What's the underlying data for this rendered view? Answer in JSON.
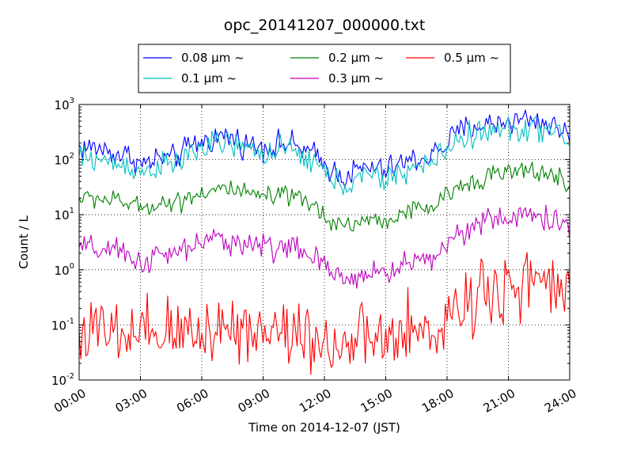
{
  "chart_data": {
    "type": "line",
    "title": "opc_20141207_000000.txt",
    "xlabel": "Time on 2014-12-07 (JST)",
    "ylabel": "Count / L",
    "x_unit": "hour",
    "xlim": [
      0,
      24
    ],
    "ylim": [
      0.01,
      1000
    ],
    "yscale": "log",
    "grid": true,
    "legend_position": "top-center",
    "x_ticks": [
      {
        "value": 0,
        "label": "00:00"
      },
      {
        "value": 3,
        "label": "03:00"
      },
      {
        "value": 6,
        "label": "06:00"
      },
      {
        "value": 9,
        "label": "09:00"
      },
      {
        "value": 12,
        "label": "12:00"
      },
      {
        "value": 15,
        "label": "15:00"
      },
      {
        "value": 18,
        "label": "18:00"
      },
      {
        "value": 21,
        "label": "21:00"
      },
      {
        "value": 24,
        "label": "24:00"
      }
    ],
    "y_ticks": [
      {
        "value": 0.01,
        "base": "10",
        "exp": "-2"
      },
      {
        "value": 0.1,
        "base": "10",
        "exp": "-1"
      },
      {
        "value": 1,
        "base": "10",
        "exp": "0"
      },
      {
        "value": 10,
        "base": "10",
        "exp": "1"
      },
      {
        "value": 100,
        "base": "10",
        "exp": "2"
      },
      {
        "value": 1000,
        "base": "10",
        "exp": "3"
      }
    ],
    "series": [
      {
        "name": "0.08 μm ~",
        "color": "#0000ff",
        "noise": 0.12,
        "points": [
          [
            0,
            170
          ],
          [
            1,
            160
          ],
          [
            2,
            120
          ],
          [
            2.5,
            120
          ],
          [
            3,
            80
          ],
          [
            3.5,
            90
          ],
          [
            4,
            110
          ],
          [
            4.5,
            100
          ],
          [
            5,
            130
          ],
          [
            5.5,
            180
          ],
          [
            6,
            210
          ],
          [
            6.5,
            230
          ],
          [
            7,
            270
          ],
          [
            7.5,
            250
          ],
          [
            8,
            200
          ],
          [
            8.5,
            180
          ],
          [
            9,
            180
          ],
          [
            9.5,
            170
          ],
          [
            10,
            200
          ],
          [
            10.5,
            180
          ],
          [
            11,
            150
          ],
          [
            11.5,
            120
          ],
          [
            12,
            80
          ],
          [
            12.5,
            60
          ],
          [
            13,
            50
          ],
          [
            13.5,
            60
          ],
          [
            14,
            70
          ],
          [
            14.5,
            70
          ],
          [
            15,
            60
          ],
          [
            15.5,
            80
          ],
          [
            16,
            90
          ],
          [
            16.5,
            100
          ],
          [
            17,
            110
          ],
          [
            17.5,
            140
          ],
          [
            18,
            200
          ],
          [
            18.5,
            300
          ],
          [
            19,
            380
          ],
          [
            19.5,
            420
          ],
          [
            20,
            430
          ],
          [
            20.5,
            470
          ],
          [
            21,
            500
          ],
          [
            21.5,
            520
          ],
          [
            22,
            560
          ],
          [
            22.5,
            500
          ],
          [
            23,
            420
          ],
          [
            23.5,
            360
          ],
          [
            24,
            300
          ]
        ]
      },
      {
        "name": "0.1 μm ~",
        "color": "#00bfbf",
        "noise": 0.12,
        "points": [
          [
            0,
            110
          ],
          [
            1,
            100
          ],
          [
            2,
            80
          ],
          [
            2.5,
            80
          ],
          [
            3,
            55
          ],
          [
            3.5,
            70
          ],
          [
            4,
            80
          ],
          [
            4.5,
            75
          ],
          [
            5,
            95
          ],
          [
            5.5,
            140
          ],
          [
            6,
            160
          ],
          [
            6.5,
            180
          ],
          [
            7,
            200
          ],
          [
            7.5,
            190
          ],
          [
            8,
            160
          ],
          [
            8.5,
            140
          ],
          [
            9,
            140
          ],
          [
            9.5,
            130
          ],
          [
            10,
            150
          ],
          [
            10.5,
            140
          ],
          [
            11,
            110
          ],
          [
            11.5,
            90
          ],
          [
            12,
            60
          ],
          [
            12.5,
            40
          ],
          [
            13,
            35
          ],
          [
            13.5,
            40
          ],
          [
            14,
            50
          ],
          [
            14.5,
            50
          ],
          [
            15,
            40
          ],
          [
            15.5,
            55
          ],
          [
            16,
            65
          ],
          [
            16.5,
            70
          ],
          [
            17,
            80
          ],
          [
            17.5,
            100
          ],
          [
            18,
            160
          ],
          [
            18.5,
            220
          ],
          [
            19,
            270
          ],
          [
            19.5,
            300
          ],
          [
            20,
            310
          ],
          [
            20.5,
            330
          ],
          [
            21,
            350
          ],
          [
            21.5,
            360
          ],
          [
            22,
            380
          ],
          [
            22.5,
            370
          ],
          [
            23,
            330
          ],
          [
            23.5,
            280
          ],
          [
            24,
            200
          ]
        ]
      },
      {
        "name": "0.2 μm ~",
        "color": "#008000",
        "noise": 0.09,
        "points": [
          [
            0,
            20
          ],
          [
            1,
            20
          ],
          [
            2,
            17
          ],
          [
            2.5,
            16
          ],
          [
            3,
            13
          ],
          [
            3.5,
            15
          ],
          [
            4,
            17
          ],
          [
            4.5,
            16
          ],
          [
            5,
            18
          ],
          [
            5.5,
            23
          ],
          [
            6,
            25
          ],
          [
            6.5,
            28
          ],
          [
            7,
            30
          ],
          [
            7.5,
            28
          ],
          [
            8,
            24
          ],
          [
            8.5,
            22
          ],
          [
            9,
            22
          ],
          [
            9.5,
            20
          ],
          [
            10,
            22
          ],
          [
            10.5,
            20
          ],
          [
            11,
            17
          ],
          [
            11.5,
            14
          ],
          [
            12,
            10
          ],
          [
            12.5,
            7
          ],
          [
            13,
            6.5
          ],
          [
            13.5,
            7
          ],
          [
            14,
            8
          ],
          [
            14.5,
            8
          ],
          [
            15,
            7
          ],
          [
            15.5,
            10
          ],
          [
            16,
            11
          ],
          [
            16.5,
            12
          ],
          [
            17,
            13
          ],
          [
            17.5,
            15
          ],
          [
            18,
            22
          ],
          [
            18.5,
            30
          ],
          [
            19,
            38
          ],
          [
            19.5,
            45
          ],
          [
            20,
            52
          ],
          [
            20.5,
            55
          ],
          [
            21,
            58
          ],
          [
            21.5,
            58
          ],
          [
            22,
            62
          ],
          [
            22.5,
            60
          ],
          [
            23,
            55
          ],
          [
            23.5,
            45
          ],
          [
            24,
            30
          ]
        ]
      },
      {
        "name": "0.3 μm ~",
        "color": "#bf00bf",
        "noise": 0.12,
        "points": [
          [
            0,
            2.5
          ],
          [
            1,
            2.3
          ],
          [
            2,
            2.0
          ],
          [
            2.5,
            1.8
          ],
          [
            3,
            1.3
          ],
          [
            3.5,
            1.6
          ],
          [
            4,
            1.8
          ],
          [
            4.5,
            1.8
          ],
          [
            5,
            2.1
          ],
          [
            5.5,
            2.8
          ],
          [
            6,
            3.0
          ],
          [
            6.5,
            3.3
          ],
          [
            7,
            3.6
          ],
          [
            7.5,
            3.4
          ],
          [
            8,
            3.0
          ],
          [
            8.5,
            2.8
          ],
          [
            9,
            2.8
          ],
          [
            9.5,
            2.6
          ],
          [
            10,
            2.7
          ],
          [
            10.5,
            2.5
          ],
          [
            11,
            2.0
          ],
          [
            11.5,
            1.6
          ],
          [
            12,
            1.1
          ],
          [
            12.5,
            0.75
          ],
          [
            13,
            0.7
          ],
          [
            13.5,
            0.75
          ],
          [
            14,
            0.9
          ],
          [
            14.5,
            0.9
          ],
          [
            15,
            0.8
          ],
          [
            15.5,
            1.1
          ],
          [
            16,
            1.3
          ],
          [
            16.5,
            1.5
          ],
          [
            17,
            1.6
          ],
          [
            17.5,
            1.8
          ],
          [
            18,
            3.0
          ],
          [
            18.5,
            4.5
          ],
          [
            19,
            6.0
          ],
          [
            19.5,
            7.0
          ],
          [
            20,
            7.5
          ],
          [
            20.5,
            8.0
          ],
          [
            21,
            8.5
          ],
          [
            21.5,
            9.0
          ],
          [
            22,
            10.0
          ],
          [
            22.5,
            9.5
          ],
          [
            23,
            8.5
          ],
          [
            23.5,
            7.0
          ],
          [
            24,
            4.0
          ]
        ]
      },
      {
        "name": "0.5 μm ~",
        "color": "#ff0000",
        "noise": 0.33,
        "points": [
          [
            0,
            0.08
          ],
          [
            1,
            0.07
          ],
          [
            2,
            0.06
          ],
          [
            3,
            0.05
          ],
          [
            4,
            0.07
          ],
          [
            5,
            0.07
          ],
          [
            6,
            0.08
          ],
          [
            7,
            0.1
          ],
          [
            8,
            0.09
          ],
          [
            9,
            0.08
          ],
          [
            10,
            0.08
          ],
          [
            11,
            0.07
          ],
          [
            12,
            0.05
          ],
          [
            13,
            0.04
          ],
          [
            14,
            0.05
          ],
          [
            15,
            0.05
          ],
          [
            16,
            0.06
          ],
          [
            17,
            0.07
          ],
          [
            17.5,
            0.09
          ],
          [
            18,
            0.13
          ],
          [
            18.5,
            0.2
          ],
          [
            19,
            0.3
          ],
          [
            19.5,
            0.4
          ],
          [
            20,
            0.45
          ],
          [
            20.5,
            0.5
          ],
          [
            21,
            0.55
          ],
          [
            21.5,
            0.55
          ],
          [
            22,
            0.6
          ],
          [
            22.5,
            0.55
          ],
          [
            23,
            0.5
          ],
          [
            23.5,
            0.4
          ],
          [
            24,
            0.3
          ]
        ]
      }
    ]
  }
}
